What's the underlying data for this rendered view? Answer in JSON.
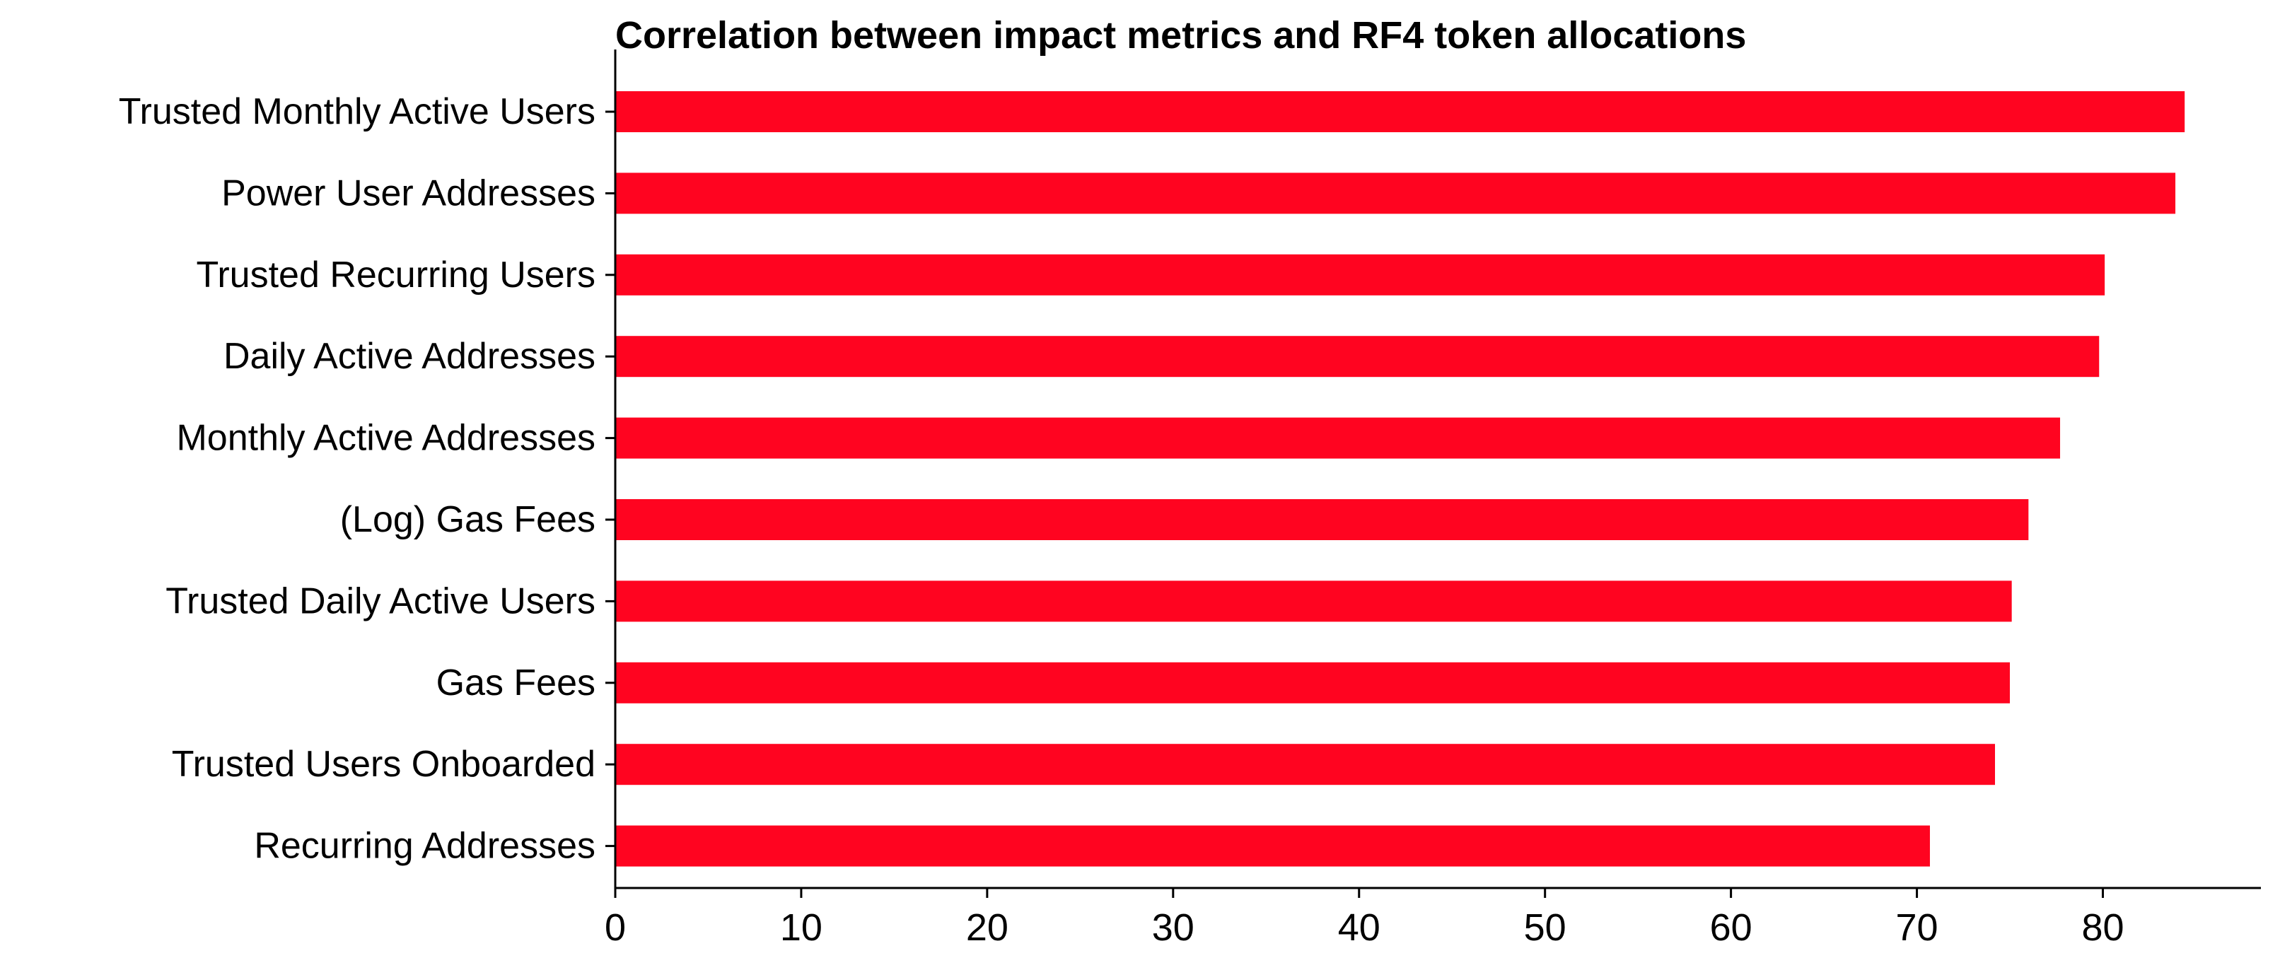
{
  "chart_data": {
    "type": "bar",
    "orientation": "horizontal",
    "title": "Correlation between impact metrics and RF4 token allocations",
    "xlabel": "",
    "ylabel": "",
    "categories": [
      "Trusted Monthly Active Users",
      "Power User Addresses",
      "Trusted Recurring Users",
      "Daily Active Addresses",
      "Monthly Active Addresses",
      "(Log) Gas Fees",
      "Trusted Daily Active Users",
      "Gas Fees",
      "Trusted Users Onboarded",
      "Recurring Addresses"
    ],
    "values": [
      84.4,
      83.9,
      80.1,
      79.8,
      77.7,
      76.0,
      75.1,
      75.0,
      74.2,
      70.7
    ],
    "xlim": [
      0,
      88.5
    ],
    "xticks": [
      "0",
      "10",
      "20",
      "30",
      "40",
      "50",
      "60",
      "70",
      "80"
    ],
    "grid": false,
    "bar_color": "#ff0420"
  }
}
